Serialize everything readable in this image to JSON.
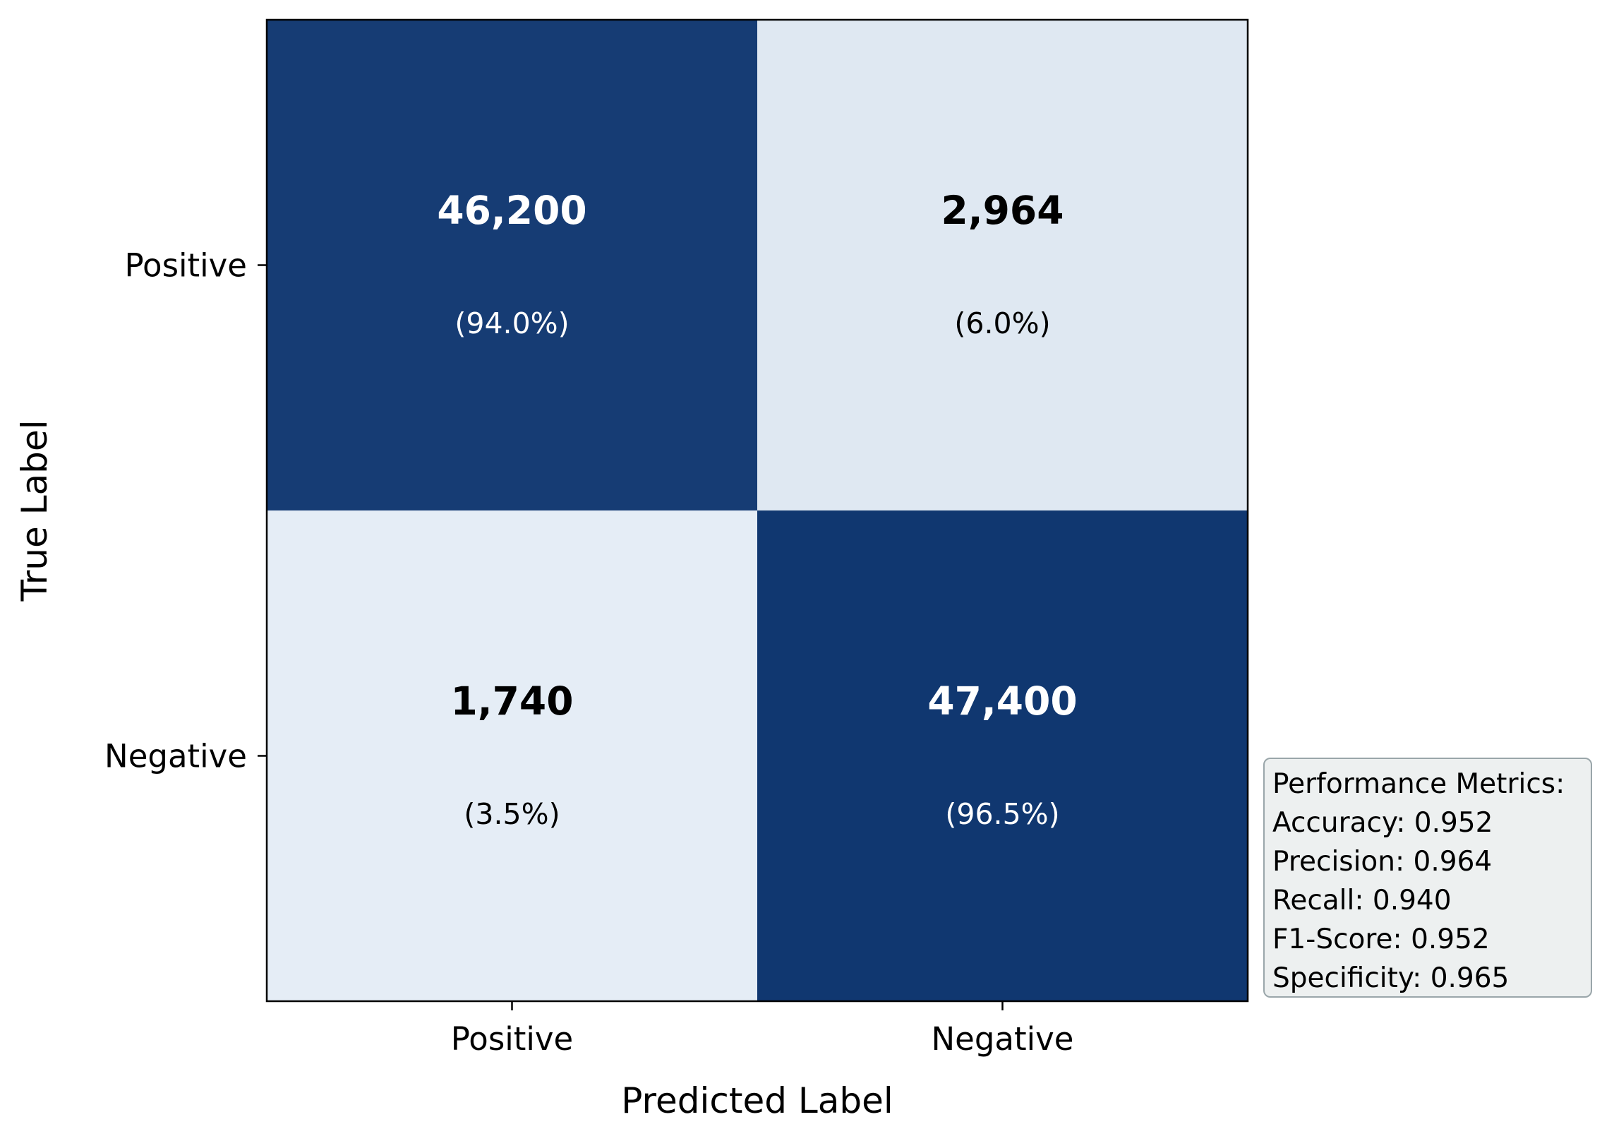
{
  "chart_data": {
    "type": "heatmap",
    "title": "",
    "xlabel": "Predicted Label",
    "ylabel": "True Label",
    "x_tick_labels": [
      "Positive",
      "Negative"
    ],
    "y_tick_labels": [
      "Positive",
      "Negative"
    ],
    "colormap": "Blues",
    "colors": {
      "high": "#08306b",
      "low": "#edf4fb",
      "text_on_dark": "#ffffff",
      "text_on_light": "#000000"
    },
    "cells": [
      [
        {
          "count": 46200,
          "count_label": "46,200",
          "pct_label": "(94.0%)",
          "level": 0.94
        },
        {
          "count": 2964,
          "count_label": "2,964",
          "pct_label": "(6.0%)",
          "level": 0.06
        }
      ],
      [
        {
          "count": 1740,
          "count_label": "1,740",
          "pct_label": "(3.5%)",
          "level": 0.035
        },
        {
          "count": 47400,
          "count_label": "47,400",
          "pct_label": "(96.5%)",
          "level": 0.965
        }
      ]
    ]
  },
  "metrics": {
    "title": "Performance Metrics:",
    "lines": [
      "Accuracy: 0.952",
      "Precision: 0.964",
      "Recall: 0.940",
      "F1-Score: 0.952",
      "Specificity: 0.965"
    ]
  }
}
